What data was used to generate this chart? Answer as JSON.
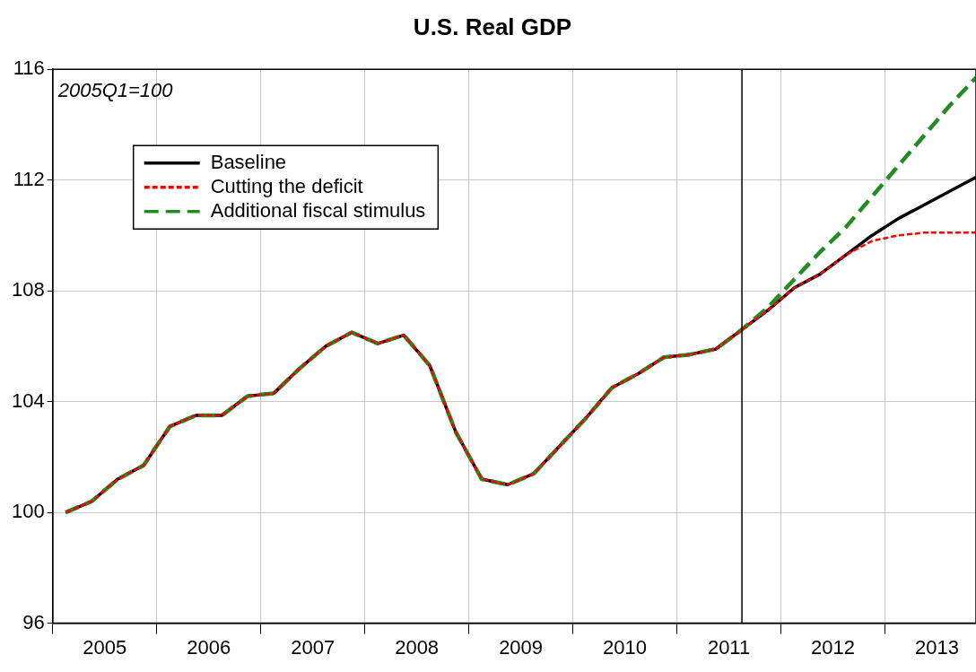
{
  "chart_data": {
    "type": "line",
    "title": "U.S. Real GDP",
    "annotations": [
      "2005Q1=100"
    ],
    "x": [
      2005.125,
      2005.375,
      2005.625,
      2005.875,
      2006.125,
      2006.375,
      2006.625,
      2006.875,
      2007.125,
      2007.375,
      2007.625,
      2007.875,
      2008.125,
      2008.375,
      2008.625,
      2008.875,
      2009.125,
      2009.375,
      2009.625,
      2009.875,
      2010.125,
      2010.375,
      2010.625,
      2010.875,
      2011.125,
      2011.375,
      2011.625,
      2011.875,
      2012.125,
      2012.375,
      2012.625,
      2012.875,
      2013.125,
      2013.375,
      2013.625,
      2013.875
    ],
    "series": [
      {
        "name": "Baseline",
        "color": "#000000",
        "line_style": "solid",
        "values": [
          100.0,
          100.4,
          101.2,
          101.7,
          103.1,
          103.5,
          103.5,
          104.2,
          104.3,
          105.2,
          106.0,
          106.5,
          106.1,
          106.4,
          105.3,
          102.9,
          101.2,
          101.0,
          101.4,
          102.4,
          103.4,
          104.5,
          105.0,
          105.6,
          105.7,
          105.9,
          106.6,
          107.3,
          108.1,
          108.6,
          109.3,
          110.0,
          110.6,
          111.1,
          111.6,
          112.1
        ]
      },
      {
        "name": "Cutting the deficit",
        "color": "#ff0000",
        "line_style": "dotted",
        "values": [
          100.0,
          100.4,
          101.2,
          101.7,
          103.1,
          103.5,
          103.5,
          104.2,
          104.3,
          105.2,
          106.0,
          106.5,
          106.1,
          106.4,
          105.3,
          102.9,
          101.2,
          101.0,
          101.4,
          102.4,
          103.4,
          104.5,
          105.0,
          105.6,
          105.7,
          105.9,
          106.6,
          107.3,
          108.1,
          108.6,
          109.3,
          109.8,
          110.0,
          110.1,
          110.1,
          110.1
        ]
      },
      {
        "name": "Additional fiscal stimulus",
        "color": "#228b22",
        "line_style": "dashed",
        "values": [
          100.0,
          100.4,
          101.2,
          101.7,
          103.1,
          103.5,
          103.5,
          104.2,
          104.3,
          105.2,
          106.0,
          106.5,
          106.1,
          106.4,
          105.3,
          102.9,
          101.2,
          101.0,
          101.4,
          102.4,
          103.4,
          104.5,
          105.0,
          105.6,
          105.7,
          105.9,
          106.6,
          107.4,
          108.4,
          109.4,
          110.3,
          111.4,
          112.5,
          113.6,
          114.7,
          115.7
        ]
      }
    ],
    "xlim": [
      2005,
      2013.875
    ],
    "xticks": [
      {
        "value": 2005,
        "label": null
      },
      {
        "value": 2005.5,
        "label": "2005"
      },
      {
        "value": 2006,
        "label": null
      },
      {
        "value": 2006.5,
        "label": "2006"
      },
      {
        "value": 2007,
        "label": null
      },
      {
        "value": 2007.5,
        "label": "2007"
      },
      {
        "value": 2008,
        "label": null
      },
      {
        "value": 2008.5,
        "label": "2008"
      },
      {
        "value": 2009,
        "label": null
      },
      {
        "value": 2009.5,
        "label": "2009"
      },
      {
        "value": 2010,
        "label": null
      },
      {
        "value": 2010.5,
        "label": "2010"
      },
      {
        "value": 2011,
        "label": null
      },
      {
        "value": 2011.5,
        "label": "2011"
      },
      {
        "value": 2012,
        "label": null
      },
      {
        "value": 2012.5,
        "label": "2012"
      },
      {
        "value": 2013,
        "label": null
      },
      {
        "value": 2013.5,
        "label": "2013"
      }
    ],
    "ylim": [
      96,
      116
    ],
    "yticks": [
      96,
      100,
      104,
      108,
      112,
      116
    ],
    "ref_lines": [
      {
        "axis": "x",
        "value": 2011.625,
        "color": "#000000"
      }
    ],
    "grid": true,
    "legend": "top left",
    "marker": "none"
  }
}
